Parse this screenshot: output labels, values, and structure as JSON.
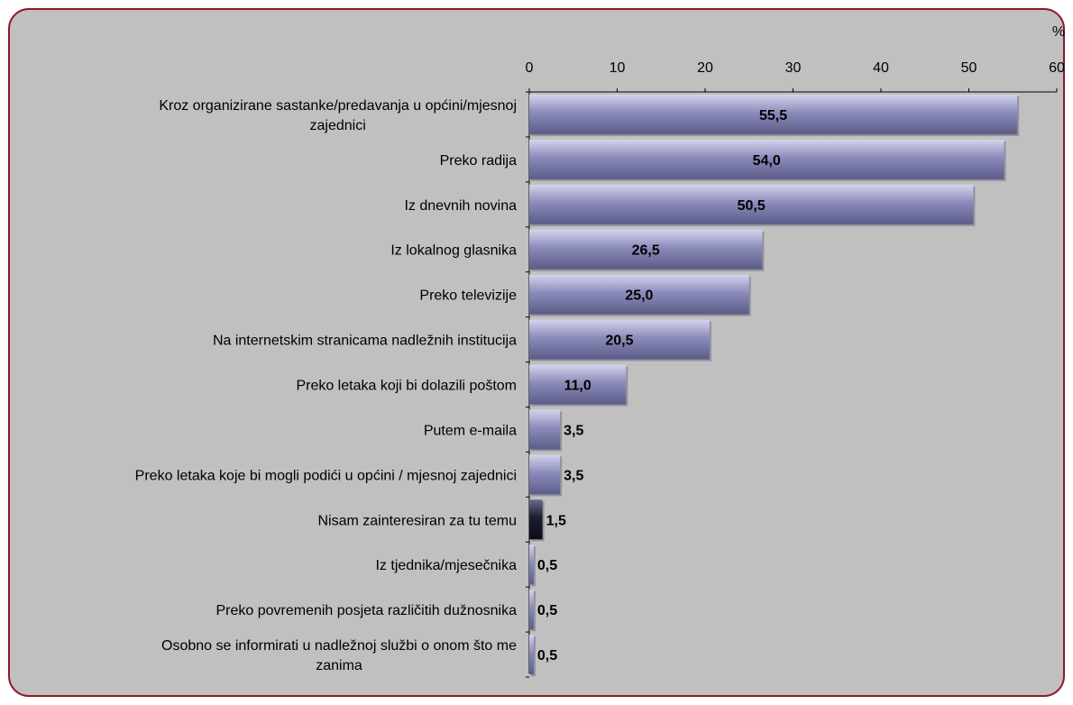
{
  "chart_data": {
    "type": "bar",
    "orientation": "horizontal",
    "unit_label": "%",
    "categories": [
      "Kroz organizirane sastanke/predavanja u općini/mjesnoj zajednici",
      "Preko radija",
      "Iz dnevnih novina",
      "Iz lokalnog glasnika",
      "Preko televizije",
      "Na internetskim stranicama nadležnih institucija",
      "Preko letaka koji bi dolazili poštom",
      "Putem e-maila",
      "Preko letaka koje bi mogli podići u općini / mjesnoj zajednici",
      "Nisam zainteresiran za tu temu",
      "Iz tjednika/mjesečnika",
      "Preko povremenih posjeta različitih dužnosnika",
      "Osobno se informirati u nadležnoj službi o onom što me zanima"
    ],
    "category_lines": [
      [
        "Kroz organizirane sastanke/predavanja u općini/mjesnoj",
        "zajednici"
      ],
      [
        "Preko radija"
      ],
      [
        "Iz dnevnih novina"
      ],
      [
        "Iz lokalnog glasnika"
      ],
      [
        "Preko televizije"
      ],
      [
        "Na internetskim stranicama nadležnih institucija"
      ],
      [
        "Preko letaka koji bi dolazili poštom"
      ],
      [
        "Putem e-maila"
      ],
      [
        "Preko letaka koje bi mogli podići u općini / mjesnoj zajednici"
      ],
      [
        "Nisam zainteresiran za tu temu"
      ],
      [
        "Iz tjednika/mjesečnika"
      ],
      [
        "Preko povremenih posjeta različitih dužnosnika"
      ],
      [
        "Osobno se informirati u nadležnoj službi o onom što me",
        "zanima"
      ]
    ],
    "values": [
      55.5,
      54.0,
      50.5,
      26.5,
      25.0,
      20.5,
      11.0,
      3.5,
      3.5,
      1.5,
      0.5,
      0.5,
      0.5
    ],
    "value_labels": [
      "55,5",
      "54,0",
      "50,5",
      "26,5",
      "25,0",
      "20,5",
      "11,0",
      "3,5",
      "3,5",
      "1,5",
      "0,5",
      "0,5",
      "0,5"
    ],
    "highlight_index": 9,
    "xlim": [
      0,
      60
    ],
    "xticks": [
      0,
      10,
      20,
      30,
      40,
      50,
      60
    ],
    "xtick_labels": [
      "0",
      "10",
      "20",
      "30",
      "40",
      "50",
      "60"
    ],
    "axis_position": "top",
    "grid": false,
    "colors": {
      "bar": "#8c8cbc",
      "bar_light": "#d4d4ec",
      "bar_dark": "#5c5c88",
      "highlight_bar": "#1c1c30",
      "highlight_light": "#6a6a90",
      "plot_bg": "#c0c0c0",
      "border": "#8b1a2a"
    }
  }
}
